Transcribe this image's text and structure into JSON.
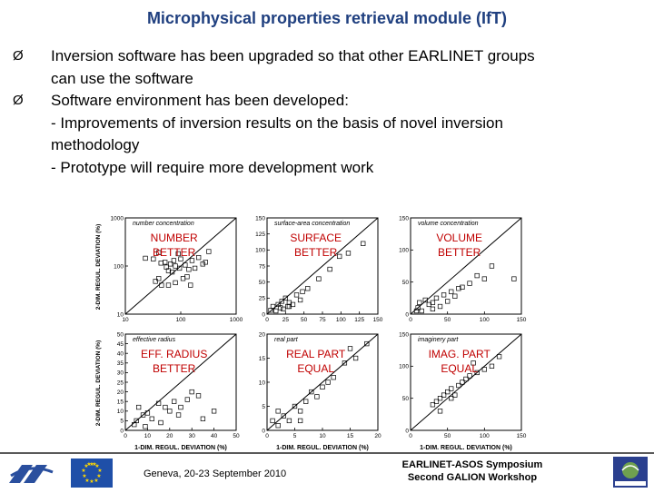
{
  "title": "Microphysical properties retrieval  module (IfT)",
  "bullets": [
    {
      "marker": "Ø",
      "text": "Inversion software has been upgraded so that other EARLINET groups"
    },
    {
      "marker": "",
      "text": "can use the software"
    },
    {
      "marker": "Ø",
      "text": "Software environment has been developed:"
    },
    {
      "marker": "",
      "text": "- Improvements of inversion results on the basis of novel inversion"
    },
    {
      "marker": "",
      "text": "methodology"
    },
    {
      "marker": "",
      "text": "- Prototype will require more development work"
    }
  ],
  "axis_labels": {
    "y_top": "2-DIM. REGUL. DEVIATION (%)",
    "y_bottom": "2-DIM. REGUL. DEVIATION (%)",
    "x_bottom": "1-DIM. REGUL. DEVIATION (%)"
  },
  "chart_data": [
    {
      "type": "scatter",
      "scale": "log",
      "title": "number concentration",
      "annotation": [
        "NUMBER",
        "BETTER"
      ],
      "xlim": [
        10,
        1000
      ],
      "ylim": [
        10,
        1000
      ],
      "xticks": [
        {
          "v": 10,
          "l": "10"
        },
        {
          "v": 100,
          "l": "100"
        },
        {
          "v": 1000,
          "l": "1000"
        }
      ],
      "yticks": [
        {
          "v": 10,
          "l": "10"
        },
        {
          "v": 100,
          "l": "100"
        },
        {
          "v": 1000,
          "l": "1000"
        }
      ],
      "points": [
        [
          23,
          145
        ],
        [
          32,
          140
        ],
        [
          40,
          190
        ],
        [
          44,
          115
        ],
        [
          52,
          120
        ],
        [
          55,
          95
        ],
        [
          60,
          80
        ],
        [
          65,
          110
        ],
        [
          70,
          75
        ],
        [
          75,
          130
        ],
        [
          80,
          100
        ],
        [
          90,
          180
        ],
        [
          95,
          90
        ],
        [
          100,
          140
        ],
        [
          120,
          105
        ],
        [
          140,
          85
        ],
        [
          40,
          55
        ],
        [
          35,
          48
        ],
        [
          45,
          40
        ],
        [
          80,
          45
        ],
        [
          60,
          40
        ],
        [
          130,
          60
        ],
        [
          160,
          130
        ],
        [
          180,
          90
        ],
        [
          210,
          150
        ],
        [
          250,
          110
        ],
        [
          280,
          120
        ],
        [
          320,
          200
        ],
        [
          150,
          40
        ],
        [
          110,
          55
        ]
      ]
    },
    {
      "type": "scatter",
      "scale": "linear",
      "title": "surface-area concentration",
      "annotation": [
        "SURFACE",
        "BETTER"
      ],
      "xlim": [
        0,
        150
      ],
      "ylim": [
        0,
        150
      ],
      "xticks": [
        {
          "v": 0,
          "l": "0"
        },
        {
          "v": 25,
          "l": "25"
        },
        {
          "v": 50,
          "l": "50"
        },
        {
          "v": 75,
          "l": "75"
        },
        {
          "v": 100,
          "l": "100"
        },
        {
          "v": 125,
          "l": "125"
        },
        {
          "v": 150,
          "l": "150"
        }
      ],
      "yticks": [
        {
          "v": 0,
          "l": "0"
        },
        {
          "v": 25,
          "l": "25"
        },
        {
          "v": 50,
          "l": "50"
        },
        {
          "v": 75,
          "l": "75"
        },
        {
          "v": 100,
          "l": "100"
        },
        {
          "v": 125,
          "l": "125"
        },
        {
          "v": 150,
          "l": "150"
        }
      ],
      "points": [
        [
          15,
          15
        ],
        [
          18,
          10
        ],
        [
          20,
          20
        ],
        [
          22,
          8
        ],
        [
          25,
          25
        ],
        [
          28,
          12
        ],
        [
          30,
          18
        ],
        [
          35,
          15
        ],
        [
          40,
          30
        ],
        [
          45,
          22
        ],
        [
          48,
          35
        ],
        [
          55,
          40
        ],
        [
          8,
          12
        ],
        [
          5,
          6
        ],
        [
          12,
          5
        ],
        [
          30,
          12
        ],
        [
          70,
          55
        ],
        [
          85,
          70
        ],
        [
          98,
          90
        ],
        [
          110,
          95
        ],
        [
          130,
          110
        ]
      ]
    },
    {
      "type": "scatter",
      "scale": "linear",
      "title": "volume concentration",
      "annotation": [
        "VOLUME",
        "BETTER"
      ],
      "xlim": [
        0,
        150
      ],
      "ylim": [
        0,
        150
      ],
      "xticks": [
        {
          "v": 0,
          "l": "0"
        },
        {
          "v": 50,
          "l": "50"
        },
        {
          "v": 100,
          "l": "100"
        },
        {
          "v": 150,
          "l": "150"
        }
      ],
      "yticks": [
        {
          "v": 0,
          "l": "0"
        },
        {
          "v": 50,
          "l": "50"
        },
        {
          "v": 100,
          "l": "100"
        },
        {
          "v": 150,
          "l": "150"
        }
      ],
      "points": [
        [
          10,
          10
        ],
        [
          15,
          5
        ],
        [
          20,
          22
        ],
        [
          25,
          15
        ],
        [
          30,
          18
        ],
        [
          35,
          25
        ],
        [
          40,
          12
        ],
        [
          45,
          30
        ],
        [
          50,
          20
        ],
        [
          55,
          35
        ],
        [
          60,
          28
        ],
        [
          65,
          40
        ],
        [
          70,
          42
        ],
        [
          8,
          5
        ],
        [
          12,
          18
        ],
        [
          30,
          8
        ],
        [
          90,
          60
        ],
        [
          110,
          75
        ],
        [
          100,
          55
        ],
        [
          140,
          55
        ],
        [
          80,
          48
        ]
      ]
    },
    {
      "type": "scatter",
      "scale": "linear",
      "title": "effective radius",
      "annotation": [
        "EFF. RADIUS",
        "BETTER"
      ],
      "xlim": [
        0,
        50
      ],
      "ylim": [
        0,
        50
      ],
      "xticks": [
        {
          "v": 0,
          "l": "0"
        },
        {
          "v": 10,
          "l": "10"
        },
        {
          "v": 20,
          "l": "20"
        },
        {
          "v": 30,
          "l": "30"
        },
        {
          "v": 40,
          "l": "40"
        },
        {
          "v": 50,
          "l": "50"
        }
      ],
      "yticks": [
        {
          "v": 0,
          "l": "0"
        },
        {
          "v": 5,
          "l": "5"
        },
        {
          "v": 10,
          "l": "10"
        },
        {
          "v": 15,
          "l": "15"
        },
        {
          "v": 20,
          "l": "20"
        },
        {
          "v": 25,
          "l": "25"
        },
        {
          "v": 30,
          "l": "30"
        },
        {
          "v": 35,
          "l": "35"
        },
        {
          "v": 40,
          "l": "40"
        },
        {
          "v": 45,
          "l": "45"
        },
        {
          "v": 50,
          "l": "50"
        }
      ],
      "points": [
        [
          5,
          5
        ],
        [
          8,
          8
        ],
        [
          10,
          9
        ],
        [
          12,
          6
        ],
        [
          15,
          14
        ],
        [
          18,
          12
        ],
        [
          20,
          10
        ],
        [
          22,
          15
        ],
        [
          25,
          12
        ],
        [
          28,
          16
        ],
        [
          30,
          20
        ],
        [
          33,
          18
        ],
        [
          6,
          12
        ],
        [
          4,
          3
        ],
        [
          9,
          2
        ],
        [
          16,
          4
        ],
        [
          24,
          8
        ],
        [
          35,
          6
        ],
        [
          40,
          10
        ]
      ]
    },
    {
      "type": "scatter",
      "scale": "linear",
      "title": "real part",
      "annotation": [
        "REAL PART",
        "EQUAL"
      ],
      "xlim": [
        0,
        20
      ],
      "ylim": [
        0,
        20
      ],
      "xticks": [
        {
          "v": 0,
          "l": "0"
        },
        {
          "v": 5,
          "l": "5"
        },
        {
          "v": 10,
          "l": "10"
        },
        {
          "v": 15,
          "l": "15"
        },
        {
          "v": 20,
          "l": "20"
        }
      ],
      "yticks": [
        {
          "v": 0,
          "l": "0"
        },
        {
          "v": 5,
          "l": "5"
        },
        {
          "v": 10,
          "l": "10"
        },
        {
          "v": 15,
          "l": "15"
        },
        {
          "v": 20,
          "l": "20"
        }
      ],
      "points": [
        [
          1,
          2
        ],
        [
          2,
          1
        ],
        [
          3,
          3
        ],
        [
          4,
          2
        ],
        [
          5,
          5
        ],
        [
          6,
          4
        ],
        [
          7,
          6
        ],
        [
          8,
          8
        ],
        [
          9,
          7
        ],
        [
          10,
          9
        ],
        [
          11,
          10
        ],
        [
          12,
          11
        ],
        [
          14,
          14
        ],
        [
          16,
          15
        ],
        [
          18,
          18
        ],
        [
          2,
          4
        ],
        [
          6,
          2
        ],
        [
          15,
          17
        ]
      ]
    },
    {
      "type": "scatter",
      "scale": "linear",
      "title": "imaginery part",
      "annotation": [
        "IMAG. PART",
        "EQUAL"
      ],
      "xlim": [
        0,
        150
      ],
      "ylim": [
        0,
        150
      ],
      "xticks": [
        {
          "v": 0,
          "l": "0"
        },
        {
          "v": 50,
          "l": "50"
        },
        {
          "v": 100,
          "l": "100"
        },
        {
          "v": 150,
          "l": "150"
        }
      ],
      "yticks": [
        {
          "v": 0,
          "l": "0"
        },
        {
          "v": 50,
          "l": "50"
        },
        {
          "v": 100,
          "l": "100"
        },
        {
          "v": 150,
          "l": "150"
        }
      ],
      "points": [
        [
          30,
          40
        ],
        [
          35,
          45
        ],
        [
          40,
          50
        ],
        [
          45,
          55
        ],
        [
          50,
          60
        ],
        [
          55,
          65
        ],
        [
          60,
          55
        ],
        [
          65,
          70
        ],
        [
          70,
          75
        ],
        [
          75,
          80
        ],
        [
          80,
          85
        ],
        [
          90,
          90
        ],
        [
          100,
          95
        ],
        [
          110,
          100
        ],
        [
          120,
          115
        ],
        [
          40,
          30
        ],
        [
          55,
          50
        ],
        [
          85,
          105
        ]
      ]
    }
  ],
  "footer": {
    "center_text": "Geneva, 20-23 September 2010",
    "right_line1": "EARLINET-ASOS Symposium",
    "right_line2": "Second GALION Workshop"
  }
}
